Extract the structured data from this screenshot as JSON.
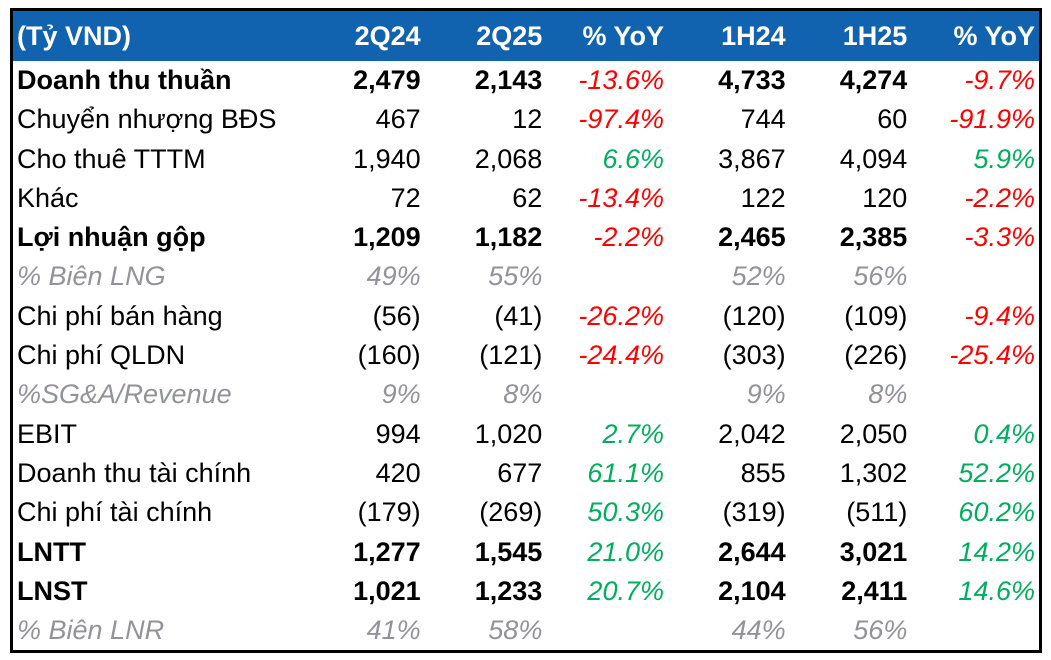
{
  "colors": {
    "header_bg": "#1163AF",
    "header_text": "#FFFFFF",
    "positive": "#00AE5E",
    "negative": "#FF0000",
    "muted": "#92929A",
    "body_text": "#000000",
    "frame_border": "#000000"
  },
  "chart_data": {
    "type": "table",
    "title": "",
    "unit_label": "(Tỷ VND)",
    "columns": [
      "2Q24",
      "2Q25",
      "% YoY",
      "1H24",
      "1H25",
      "% YoY"
    ],
    "rows": [
      {
        "label": "Doanh thu thuần",
        "style": "bold",
        "values": [
          "2,479",
          "2,143",
          "-13.6%",
          "4,733",
          "4,274",
          "-9.7%"
        ]
      },
      {
        "label": "Chuyển nhượng BĐS",
        "style": "normal",
        "values": [
          "467",
          "12",
          "-97.4%",
          "744",
          "60",
          "-91.9%"
        ]
      },
      {
        "label": "Cho thuê TTTM",
        "style": "normal",
        "values": [
          "1,940",
          "2,068",
          "6.6%",
          "3,867",
          "4,094",
          "5.9%"
        ]
      },
      {
        "label": "Khác",
        "style": "normal",
        "values": [
          "72",
          "62",
          "-13.4%",
          "122",
          "120",
          "-2.2%"
        ]
      },
      {
        "label": "Lợi nhuận gộp",
        "style": "bold",
        "values": [
          "1,209",
          "1,182",
          "-2.2%",
          "2,465",
          "2,385",
          "-3.3%"
        ]
      },
      {
        "label": "% Biên LNG",
        "style": "muted",
        "values": [
          "49%",
          "55%",
          "",
          "52%",
          "56%",
          ""
        ]
      },
      {
        "label": "Chi phí bán hàng",
        "style": "normal",
        "values": [
          "(56)",
          "(41)",
          "-26.2%",
          "(120)",
          "(109)",
          "-9.4%"
        ]
      },
      {
        "label": "Chi phí QLDN",
        "style": "normal",
        "values": [
          "(160)",
          "(121)",
          "-24.4%",
          "(303)",
          "(226)",
          "-25.4%"
        ]
      },
      {
        "label": "%SG&A/Revenue",
        "style": "muted",
        "values": [
          "9%",
          "8%",
          "",
          "9%",
          "8%",
          ""
        ]
      },
      {
        "label": "EBIT",
        "style": "normal",
        "values": [
          "994",
          "1,020",
          "2.7%",
          "2,042",
          "2,050",
          "0.4%"
        ]
      },
      {
        "label": "Doanh thu tài chính",
        "style": "normal",
        "values": [
          "420",
          "677",
          "61.1%",
          "855",
          "1,302",
          "52.2%"
        ]
      },
      {
        "label": "Chi phí tài chính",
        "style": "normal",
        "values": [
          "(179)",
          "(269)",
          "50.3%",
          "(319)",
          "(511)",
          "60.2%"
        ]
      },
      {
        "label": "LNTT",
        "style": "bold",
        "values": [
          "1,277",
          "1,545",
          "21.0%",
          "2,644",
          "3,021",
          "14.2%"
        ]
      },
      {
        "label": "LNST",
        "style": "bold",
        "values": [
          "1,021",
          "1,233",
          "20.7%",
          "2,104",
          "2,411",
          "14.6%"
        ]
      },
      {
        "label": "% Biên LNR",
        "style": "muted",
        "values": [
          "41%",
          "58%",
          "",
          "44%",
          "56%",
          ""
        ]
      }
    ]
  }
}
